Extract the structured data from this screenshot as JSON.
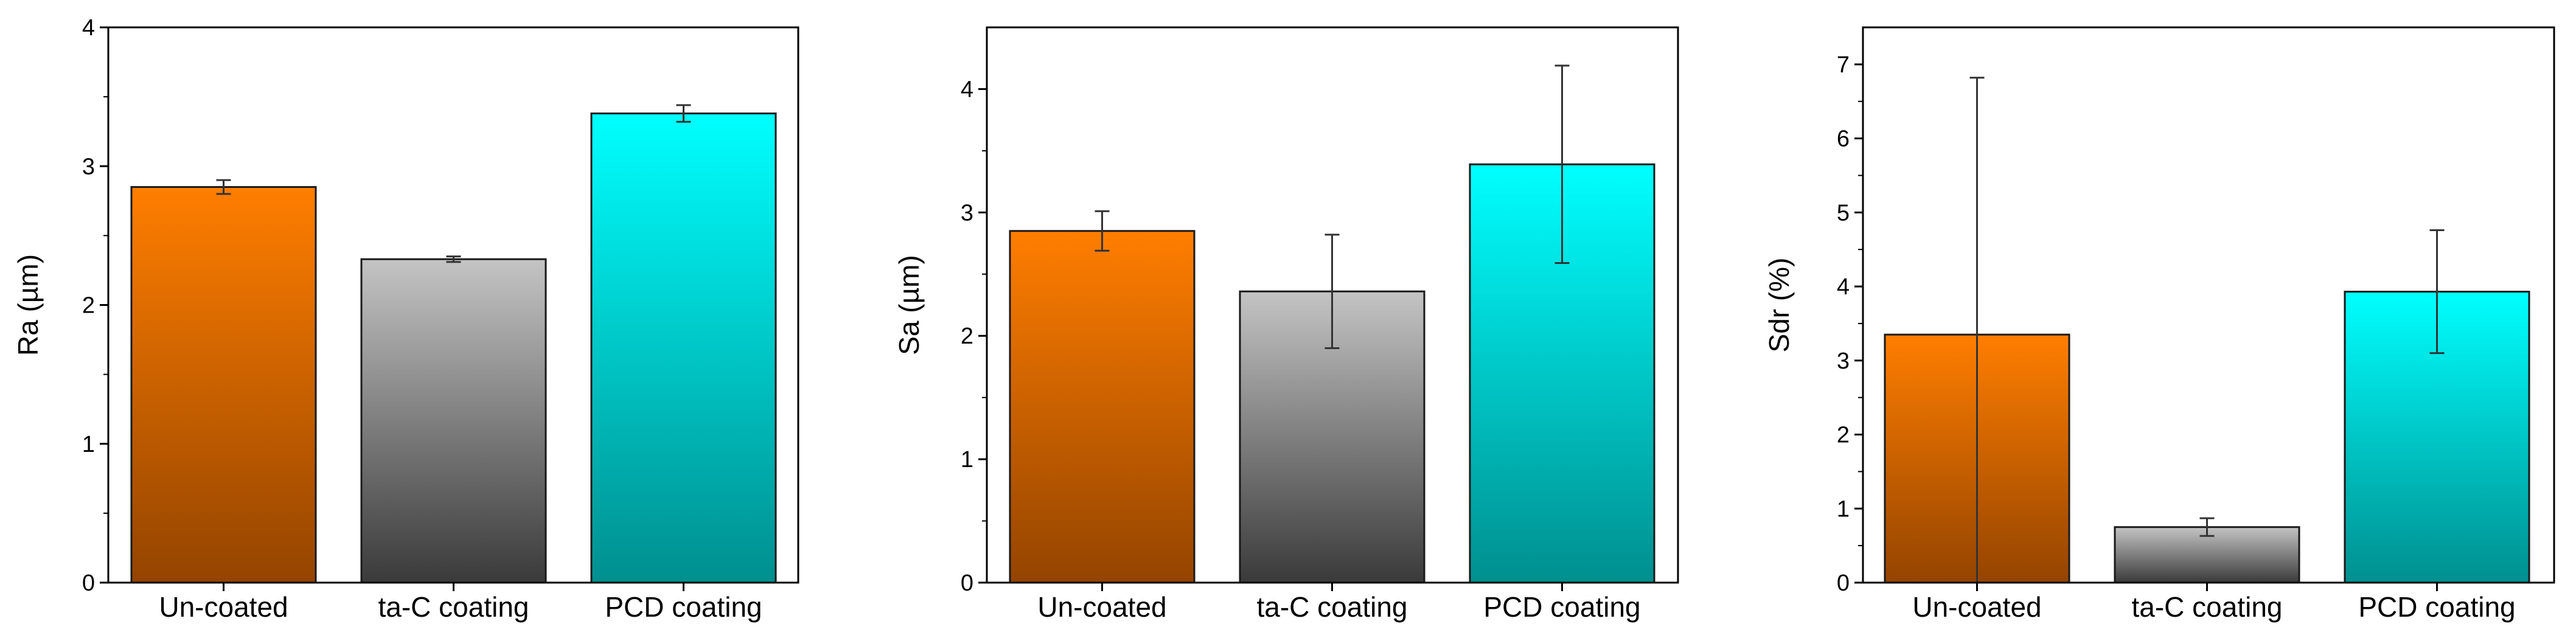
{
  "chart_data": [
    {
      "type": "bar",
      "ylabel": "Ra (µm)",
      "categories": [
        "Un-coated",
        "ta-C coating",
        "PCD coating"
      ],
      "values": [
        2.85,
        2.33,
        3.38
      ],
      "errors": [
        0.05,
        0.02,
        0.06
      ],
      "ylim": [
        0,
        4
      ],
      "yticks": [
        0,
        1,
        2,
        3,
        4
      ],
      "ytick_labels": [
        "0",
        "1",
        "2",
        "3",
        "4"
      ]
    },
    {
      "type": "bar",
      "ylabel": "Sa (µm)",
      "categories": [
        "Un-coated",
        "ta-C coating",
        "PCD coating"
      ],
      "values": [
        2.85,
        2.36,
        3.39
      ],
      "errors": [
        0.16,
        0.46,
        0.8
      ],
      "ylim": [
        0,
        4.5
      ],
      "yticks": [
        0,
        1,
        2,
        3,
        4
      ],
      "ytick_labels": [
        "0",
        "1",
        "2",
        "3",
        "4"
      ]
    },
    {
      "type": "bar",
      "ylabel": "Sdr (%)",
      "categories": [
        "Un-coated",
        "ta-C coating",
        "PCD coating"
      ],
      "values": [
        3.35,
        0.75,
        3.93
      ],
      "errors": [
        3.47,
        0.12,
        0.83
      ],
      "ylim": [
        0,
        7.5
      ],
      "yticks": [
        0,
        1,
        2,
        3,
        4,
        5,
        6,
        7
      ],
      "ytick_labels": [
        "0",
        "1",
        "2",
        "3",
        "4",
        "5",
        "6",
        "7"
      ]
    }
  ],
  "colors": {
    "bar_gradients": [
      [
        "#ff7e00",
        "#944400"
      ],
      [
        "#c4c4c4",
        "#3a3a3a"
      ],
      [
        "#00ffff",
        "#008f8f"
      ]
    ],
    "axis": "#000000",
    "error_bar": "#333333"
  }
}
